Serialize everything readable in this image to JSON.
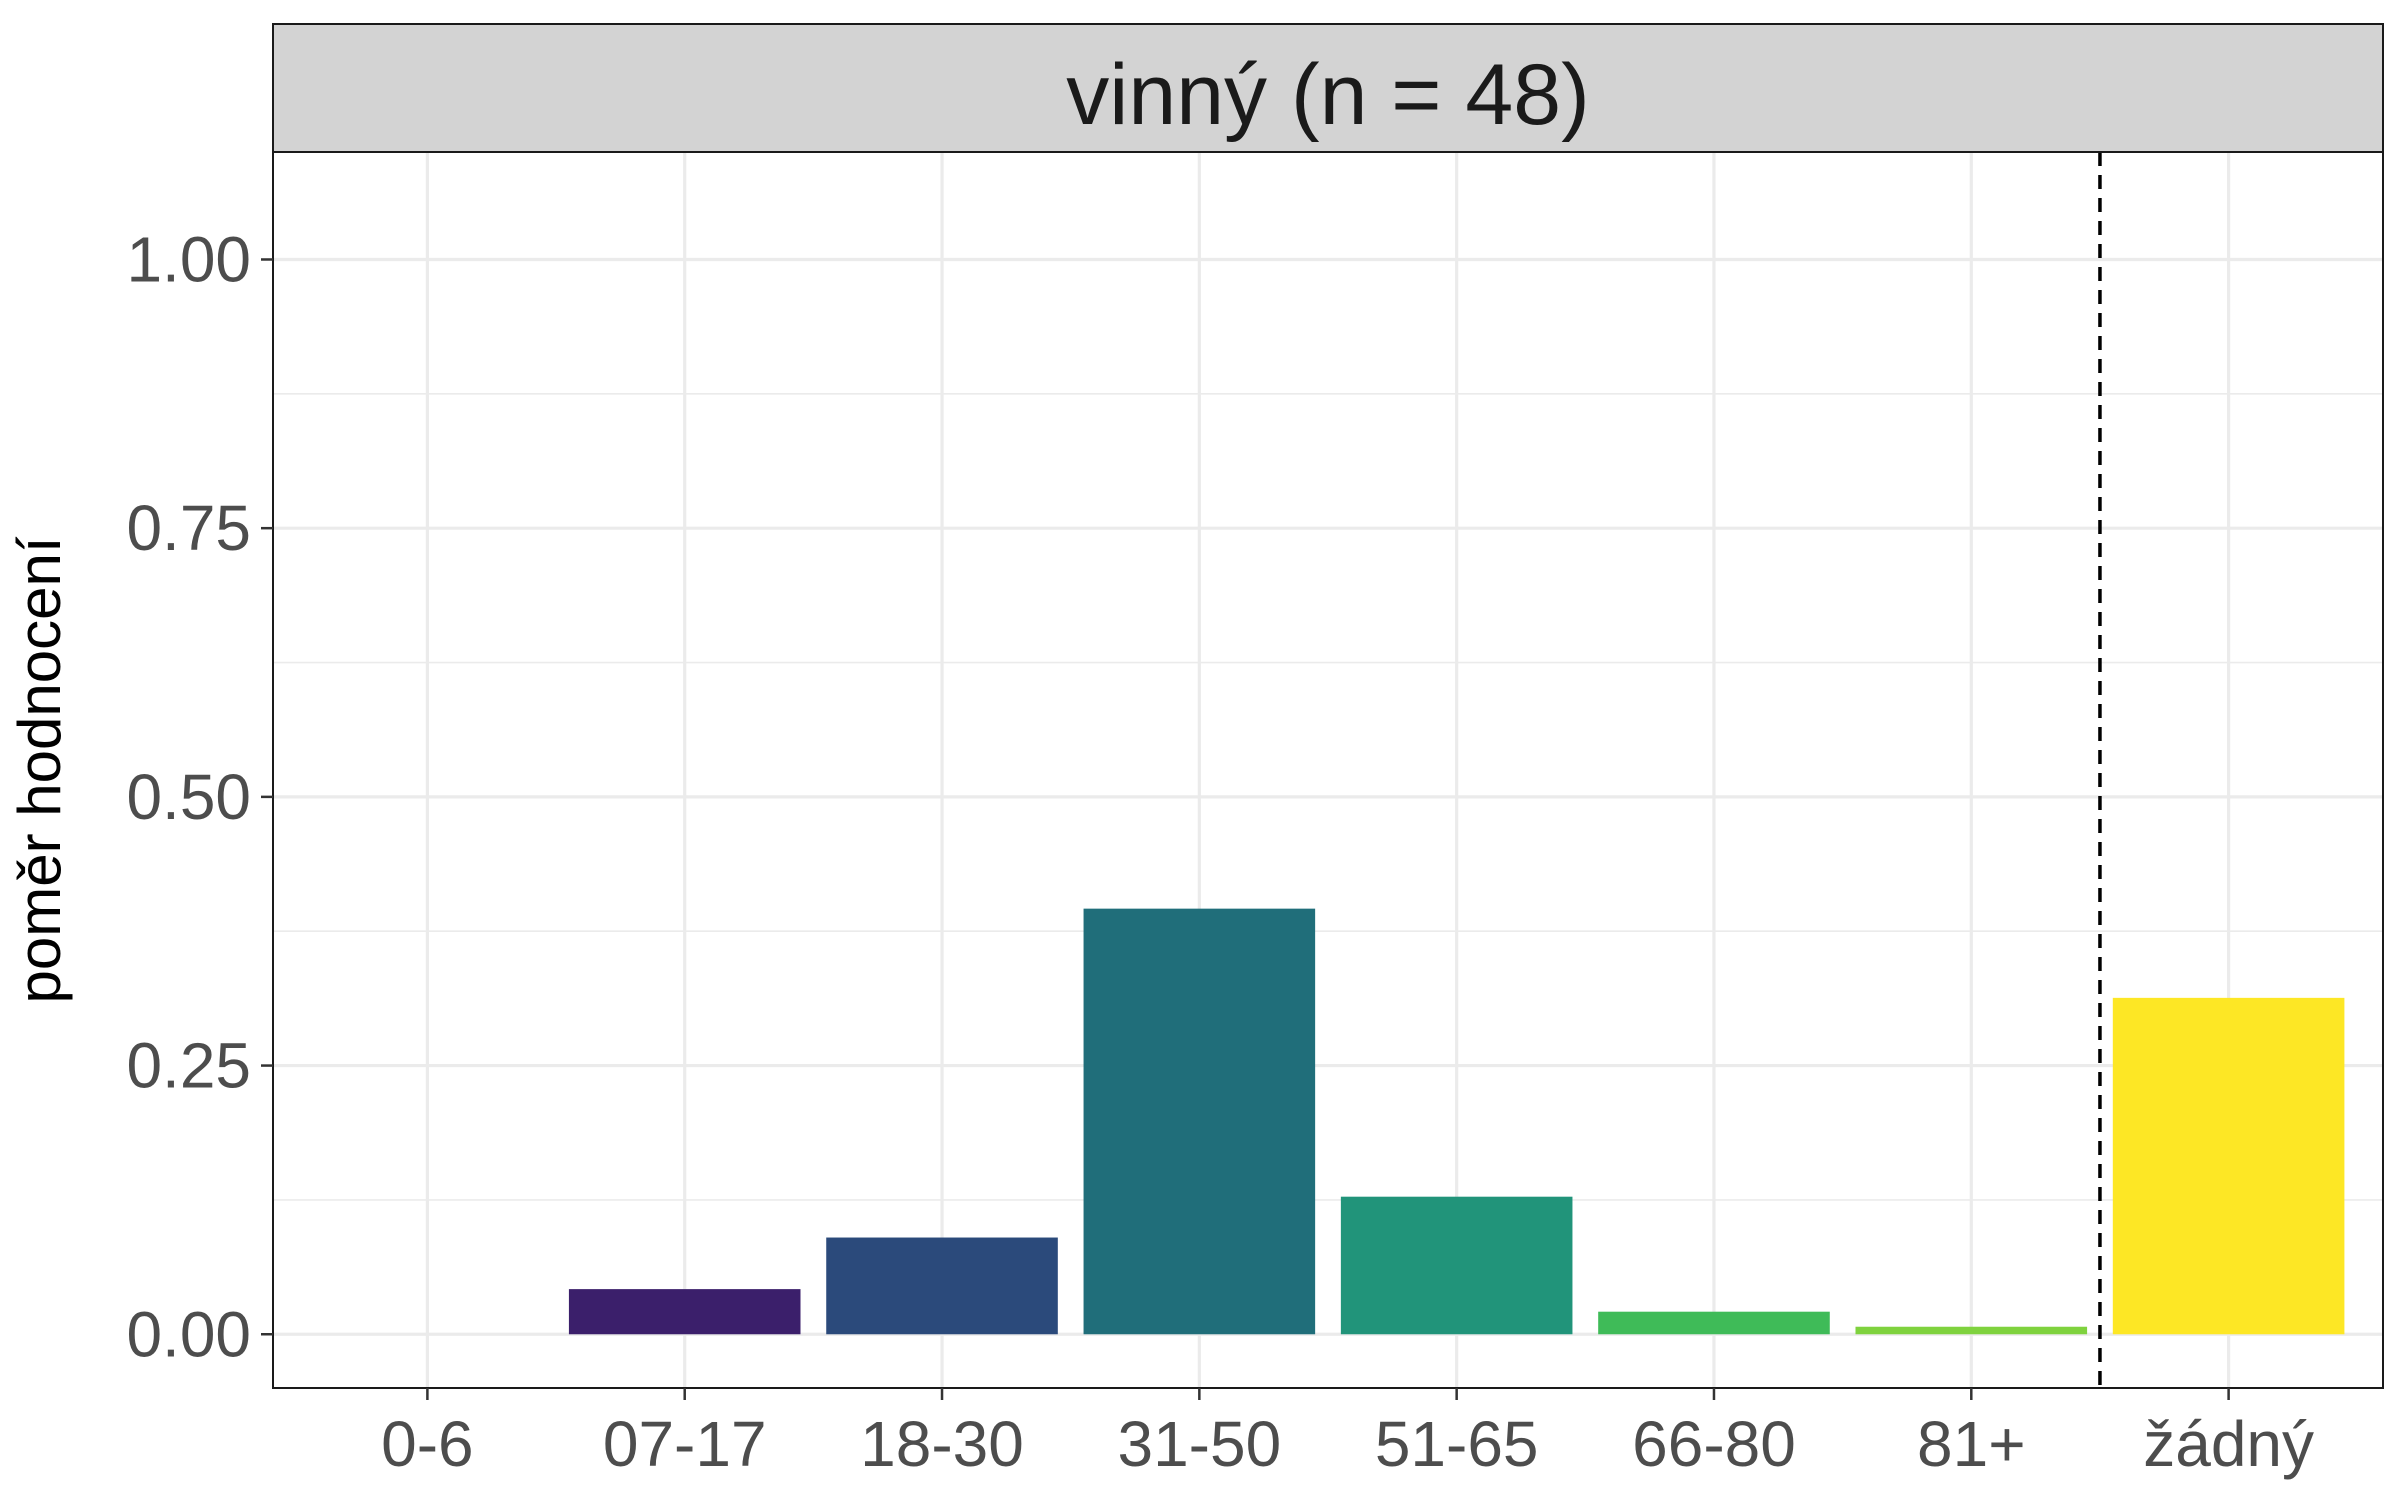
{
  "chart_data": {
    "type": "bar",
    "facet_title": "vinný (n = 48)",
    "ylabel": "poměr hodnocení",
    "xlabel": "",
    "categories": [
      "0-6",
      "07-17",
      "18-30",
      "31-50",
      "51-65",
      "66-80",
      "81+",
      "žádný"
    ],
    "values": [
      0.0,
      0.042,
      0.09,
      0.396,
      0.128,
      0.021,
      0.007,
      0.313
    ],
    "colors": [
      "#440154",
      "#3b1f6b",
      "#2b4a7b",
      "#206e7a",
      "#21947a",
      "#3fbb58",
      "#7fd23e",
      "#fde725"
    ],
    "ylim": [
      -0.05,
      1.1
    ],
    "yticks": [
      0.0,
      0.25,
      0.5,
      0.75,
      1.0
    ],
    "ytick_labels": [
      "0.00",
      "0.25",
      "0.50",
      "0.75",
      "1.00"
    ],
    "reference_line": {
      "position": "between 81+ and žádný",
      "style": "dashed"
    },
    "grid": true,
    "legend": "none"
  }
}
